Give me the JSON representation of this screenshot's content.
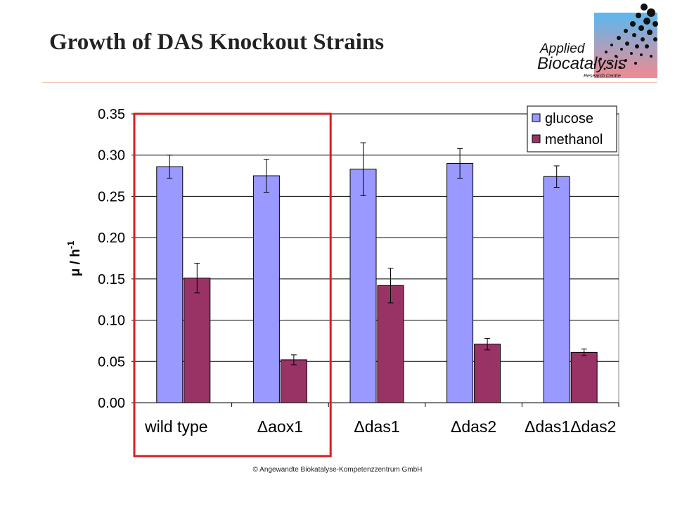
{
  "header": {
    "title": "Growth of DAS Knockout Strains",
    "logo": {
      "line1": "Applied",
      "line2": "Biocatalysis",
      "line3": "Research Centre",
      "gradient_top": "#5ab8f0",
      "gradient_bottom": "#f08a90"
    }
  },
  "footer": {
    "copyright": "© Angewandte Biokatalyse-Kompetenzzentrum  GmbH"
  },
  "highlight": {
    "color": "#d62020",
    "spans_categories": [
      "wild type",
      "Δaox1"
    ]
  },
  "chart_data": {
    "type": "bar",
    "title": "",
    "xlabel": "",
    "ylabel": "μ / h",
    "ylabel_superscript": "-1",
    "ylim": [
      0,
      0.35
    ],
    "yticks": [
      "0.00",
      "0.05",
      "0.10",
      "0.15",
      "0.20",
      "0.25",
      "0.30",
      "0.35"
    ],
    "grid": true,
    "legend_position": "top-right",
    "categories": [
      "wild type",
      "Δaox1",
      "Δdas1",
      "Δdas2",
      "Δdas1Δdas2"
    ],
    "series": [
      {
        "name": "glucose",
        "color": "#9999ff",
        "values": [
          0.286,
          0.275,
          0.283,
          0.29,
          0.274
        ],
        "errors": [
          0.014,
          0.02,
          0.032,
          0.018,
          0.013
        ]
      },
      {
        "name": "methanol",
        "color": "#993366",
        "values": [
          0.151,
          0.052,
          0.142,
          0.071,
          0.061
        ],
        "errors": [
          0.018,
          0.006,
          0.021,
          0.007,
          0.004
        ]
      }
    ]
  }
}
